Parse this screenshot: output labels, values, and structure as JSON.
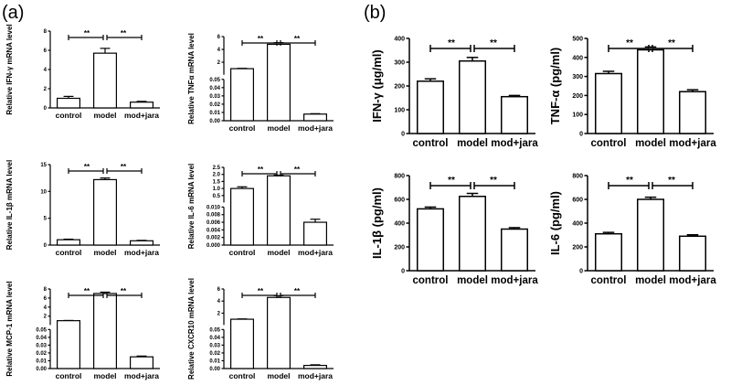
{
  "panel_a_label": "(a)",
  "panel_b_label": "(b)",
  "chart_data": [
    {
      "id": "ifng_mrna",
      "panel": "a",
      "type": "bar",
      "size": "s",
      "categories": [
        "control",
        "model",
        "mod+jara"
      ],
      "ylabel": "Relative IFN-γ mRNA level",
      "segments": [
        {
          "range": [
            0,
            8
          ],
          "ticks": [
            "0",
            "2",
            "4",
            "6",
            "8"
          ]
        }
      ],
      "values": [
        1.0,
        5.7,
        0.6
      ],
      "errors": [
        0.2,
        0.5,
        0.08
      ],
      "significance": [
        "**",
        "**"
      ]
    },
    {
      "id": "tnfa_mrna",
      "panel": "a",
      "type": "bar",
      "size": "s",
      "categories": [
        "control",
        "model",
        "mod+jara"
      ],
      "ylabel": "Relative TNFα mRNA level",
      "segments": [
        {
          "range": [
            0,
            0.05
          ],
          "ticks": [
            "0.00",
            "0.01",
            "0.02",
            "0.03",
            "0.04",
            "0.05"
          ]
        },
        {
          "range": [
            0.05,
            6
          ],
          "ticks": [
            "2",
            "4",
            "6"
          ]
        }
      ],
      "values": [
        1.0,
        4.8,
        0.008
      ],
      "errors": [
        0.05,
        0.25,
        0.0005
      ],
      "significance": [
        "**",
        "**"
      ]
    },
    {
      "id": "il1b_mrna",
      "panel": "a",
      "type": "bar",
      "size": "s",
      "categories": [
        "control",
        "model",
        "mod+jara"
      ],
      "ylabel": "Relative IL-1β mRNA level",
      "segments": [
        {
          "range": [
            0,
            15
          ],
          "ticks": [
            "0",
            "5",
            "10",
            "15"
          ]
        }
      ],
      "values": [
        1.0,
        12.2,
        0.8
      ],
      "errors": [
        0.1,
        0.3,
        0.08
      ],
      "significance": [
        "**",
        "**"
      ]
    },
    {
      "id": "il6_mrna",
      "panel": "a",
      "type": "bar",
      "size": "s",
      "categories": [
        "control",
        "model",
        "mod+jara"
      ],
      "ylabel": "Relative IL-6 mRNA level",
      "segments": [
        {
          "range": [
            0,
            0.01
          ],
          "ticks": [
            "0.000",
            "0.002",
            "0.004",
            "0.006",
            "0.008",
            "0.010"
          ]
        },
        {
          "range": [
            0.01,
            2.5
          ],
          "ticks": [
            "0.5",
            "1.0",
            "1.5",
            "2.0",
            "2.5"
          ]
        }
      ],
      "values": [
        1.0,
        1.9,
        0.006
      ],
      "errors": [
        0.12,
        0.05,
        0.0008
      ],
      "significance": [
        "**",
        "**"
      ]
    },
    {
      "id": "mcp1_mrna",
      "panel": "a",
      "type": "bar",
      "size": "s",
      "categories": [
        "control",
        "model",
        "mod+jara"
      ],
      "ylabel": "Relative MCP-1 mRNA level",
      "segments": [
        {
          "range": [
            0,
            0.05
          ],
          "ticks": [
            "0.00",
            "0.01",
            "0.02",
            "0.03",
            "0.04",
            "0.05"
          ]
        },
        {
          "range": [
            0.05,
            8
          ],
          "ticks": [
            "2",
            "4",
            "6",
            "8"
          ]
        }
      ],
      "values": [
        1.0,
        7.0,
        0.015
      ],
      "errors": [
        0.05,
        0.3,
        0.001
      ],
      "significance": [
        "**",
        "**"
      ]
    },
    {
      "id": "cxcr10_mrna",
      "panel": "a",
      "type": "bar",
      "size": "s",
      "categories": [
        "control",
        "model",
        "mod+jara"
      ],
      "ylabel": "Relative CXCR10 mRNA level",
      "segments": [
        {
          "range": [
            0,
            0.05
          ],
          "ticks": [
            "0.00",
            "0.01",
            "0.02",
            "0.03",
            "0.04",
            "0.05"
          ]
        },
        {
          "range": [
            0.05,
            6
          ],
          "ticks": [
            "2",
            "4",
            "6"
          ]
        }
      ],
      "values": [
        1.0,
        4.6,
        0.004
      ],
      "errors": [
        0.05,
        0.3,
        0.0008
      ],
      "significance": [
        "**",
        "**"
      ]
    },
    {
      "id": "ifng_protein",
      "panel": "b",
      "type": "bar",
      "size": "l",
      "categories": [
        "control",
        "model",
        "mod+jara"
      ],
      "ylabel": "IFN-γ (μg/ml)",
      "segments": [
        {
          "range": [
            0,
            400
          ],
          "ticks": [
            "0",
            "100",
            "200",
            "300",
            "400"
          ]
        }
      ],
      "values": [
        220,
        305,
        155
      ],
      "errors": [
        10,
        15,
        5
      ],
      "significance": [
        "**",
        "**"
      ]
    },
    {
      "id": "tnfa_protein",
      "panel": "b",
      "type": "bar",
      "size": "l",
      "categories": [
        "control",
        "model",
        "mod+jara"
      ],
      "ylabel": "TNF-α (pg/ml)",
      "segments": [
        {
          "range": [
            0,
            500
          ],
          "ticks": [
            "0",
            "100",
            "200",
            "300",
            "400",
            "500"
          ]
        }
      ],
      "values": [
        315,
        440,
        220
      ],
      "errors": [
        12,
        15,
        10
      ],
      "significance": [
        "**",
        "**"
      ]
    },
    {
      "id": "il1b_protein",
      "panel": "b",
      "type": "bar",
      "size": "l",
      "categories": [
        "control",
        "model",
        "mod+jara"
      ],
      "ylabel": "IL-1β (pg/ml)",
      "segments": [
        {
          "range": [
            0,
            800
          ],
          "ticks": [
            "0",
            "200",
            "400",
            "600",
            "800"
          ]
        }
      ],
      "values": [
        520,
        625,
        350
      ],
      "errors": [
        15,
        25,
        12
      ],
      "significance": [
        "**",
        "**"
      ]
    },
    {
      "id": "il6_protein",
      "panel": "b",
      "type": "bar",
      "size": "l",
      "categories": [
        "control",
        "model",
        "mod+jara"
      ],
      "ylabel": "IL-6 (pg/ml)",
      "segments": [
        {
          "range": [
            0,
            800
          ],
          "ticks": [
            "0",
            "200",
            "400",
            "600",
            "800"
          ]
        }
      ],
      "values": [
        310,
        600,
        290
      ],
      "errors": [
        12,
        18,
        12
      ],
      "significance": [
        "**",
        "**"
      ]
    }
  ]
}
